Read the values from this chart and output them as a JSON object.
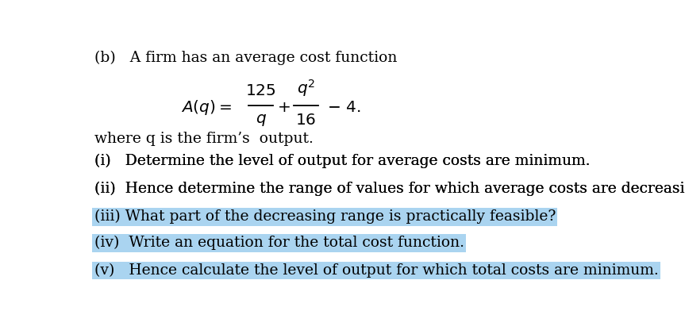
{
  "bg_color": "#ffffff",
  "text_color": "#000000",
  "highlight_color": "#aad4f0",
  "title_line1": "(b)   A firm has an average cost function",
  "where_line": "where q is the firm’s  output.",
  "items": [
    {
      "label": "(i)   ",
      "text": "Determine the level of output for average costs are minimum.",
      "highlight": false
    },
    {
      "label": "(ii)  ",
      "text": "Hence determine the range of values for which average costs are decreasing.",
      "highlight": false
    },
    {
      "label": "(iii) ",
      "text": "What part of the decreasing range is practically feasible?",
      "highlight": true,
      "highlight_words": [
        1,
        3,
        4,
        6,
        7
      ]
    },
    {
      "label": "(iv) ",
      "text": "Write an equation for the total cost function.",
      "highlight": true,
      "highlight_words": [
        2,
        3
      ]
    },
    {
      "label": "(v)  ",
      "text": "Hence calculate the level of output for which total costs are minimum.",
      "highlight": true,
      "highlight_words": [
        1,
        3,
        4,
        6,
        9,
        10,
        11
      ]
    }
  ],
  "font_size": 13.5,
  "font_size_formula": 14.5
}
